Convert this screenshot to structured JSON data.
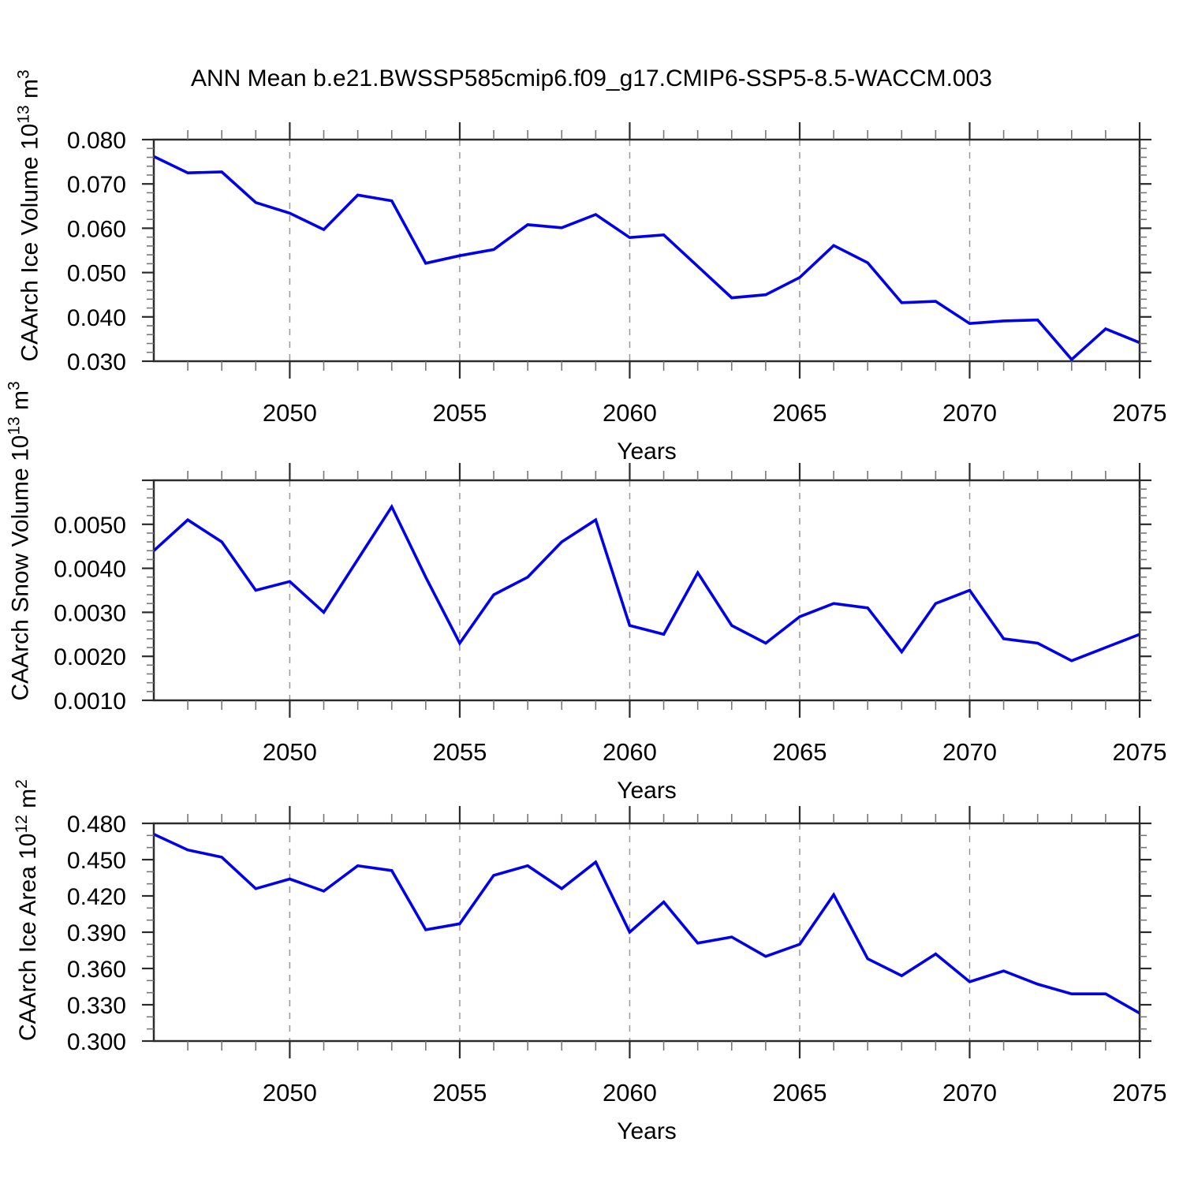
{
  "title": "ANN Mean b.e21.BWSSP585cmip6.f09_g17.CMIP6-SSP5-8.5-WACCM.003",
  "colors": {
    "line": "#0000ee",
    "axis": "#2b2b2b",
    "major_tick": "#2b2b2b",
    "minor_tick": "#777777",
    "gridline": "#999999",
    "text": "#000000",
    "background": "#ffffff"
  },
  "x_axis": {
    "label": "Years",
    "min": 2046,
    "max": 2075,
    "major_ticks": [
      2050,
      2055,
      2060,
      2065,
      2070,
      2075
    ],
    "tick_labels": [
      "2050",
      "2055",
      "2060",
      "2065",
      "2070",
      "2075"
    ],
    "minor_step": 1,
    "gridline_years": [
      2050,
      2055,
      2060,
      2065,
      2070
    ]
  },
  "chart_data": [
    {
      "type": "line",
      "name": "caarch-ice-volume",
      "ylabel": {
        "text": "CAArch Ice Volume 10",
        "exp": "13",
        "unit": " m",
        "unit_exp": "3"
      },
      "xlabel": "Years",
      "ymin": 0.03,
      "ymax": 0.08,
      "ymajor_step": 0.01,
      "yminor_step": 0.002,
      "yticks": [
        {
          "v": 0.03,
          "label": "0.030"
        },
        {
          "v": 0.04,
          "label": "0.040"
        },
        {
          "v": 0.05,
          "label": "0.050"
        },
        {
          "v": 0.06,
          "label": "0.060"
        },
        {
          "v": 0.07,
          "label": "0.070"
        },
        {
          "v": 0.08,
          "label": "0.080"
        }
      ],
      "x": [
        2046,
        2047,
        2048,
        2049,
        2050,
        2051,
        2052,
        2053,
        2054,
        2055,
        2056,
        2057,
        2058,
        2059,
        2060,
        2061,
        2062,
        2063,
        2064,
        2065,
        2066,
        2067,
        2068,
        2069,
        2070,
        2071,
        2072,
        2073,
        2074,
        2075
      ],
      "values": [
        0.0762,
        0.0725,
        0.0727,
        0.0658,
        0.0634,
        0.0597,
        0.0675,
        0.0662,
        0.0521,
        0.0538,
        0.0552,
        0.0608,
        0.0601,
        0.0631,
        0.0579,
        0.0585,
        0.0514,
        0.0443,
        0.045,
        0.0489,
        0.0561,
        0.0522,
        0.0432,
        0.0435,
        0.0385,
        0.0391,
        0.0393,
        0.0304,
        0.0373,
        0.0342
      ]
    },
    {
      "type": "line",
      "name": "caarch-snow-volume",
      "ylabel": {
        "text": "CAArch Snow Volume 10",
        "exp": "13",
        "unit": " m",
        "unit_exp": "3"
      },
      "xlabel": "Years",
      "ymin": 0.001,
      "ymax": 0.006,
      "ymajor_step": 0.001,
      "yminor_step": 0.0002,
      "yticks": [
        {
          "v": 0.001,
          "label": "0.0010"
        },
        {
          "v": 0.002,
          "label": "0.0020"
        },
        {
          "v": 0.003,
          "label": "0.0030"
        },
        {
          "v": 0.004,
          "label": "0.0040"
        },
        {
          "v": 0.005,
          "label": "0.0050"
        },
        {
          "v": 0.006,
          "label": ""
        }
      ],
      "x": [
        2046,
        2047,
        2048,
        2049,
        2050,
        2051,
        2052,
        2053,
        2054,
        2055,
        2056,
        2057,
        2058,
        2059,
        2060,
        2061,
        2062,
        2063,
        2064,
        2065,
        2066,
        2067,
        2068,
        2069,
        2070,
        2071,
        2072,
        2073,
        2074,
        2075
      ],
      "values": [
        0.0044,
        0.0051,
        0.0046,
        0.0035,
        0.0037,
        0.003,
        0.0042,
        0.0054,
        0.0038,
        0.0023,
        0.0034,
        0.0038,
        0.0046,
        0.0051,
        0.0027,
        0.0025,
        0.0039,
        0.0027,
        0.0023,
        0.0029,
        0.0032,
        0.0031,
        0.0021,
        0.0032,
        0.0035,
        0.0024,
        0.0023,
        0.0019,
        0.0022,
        0.0025
      ]
    },
    {
      "type": "line",
      "name": "caarch-ice-area",
      "ylabel": {
        "text": "CAArch Ice Area 10",
        "exp": "12",
        "unit": " m",
        "unit_exp": "2"
      },
      "xlabel": "Years",
      "ymin": 0.3,
      "ymax": 0.48,
      "ymajor_step": 0.03,
      "yminor_step": 0.01,
      "yticks": [
        {
          "v": 0.3,
          "label": "0.300"
        },
        {
          "v": 0.33,
          "label": "0.330"
        },
        {
          "v": 0.36,
          "label": "0.360"
        },
        {
          "v": 0.39,
          "label": "0.390"
        },
        {
          "v": 0.42,
          "label": "0.420"
        },
        {
          "v": 0.45,
          "label": "0.450"
        },
        {
          "v": 0.48,
          "label": "0.480"
        }
      ],
      "x": [
        2046,
        2047,
        2048,
        2049,
        2050,
        2051,
        2052,
        2053,
        2054,
        2055,
        2056,
        2057,
        2058,
        2059,
        2060,
        2061,
        2062,
        2063,
        2064,
        2065,
        2066,
        2067,
        2068,
        2069,
        2070,
        2071,
        2072,
        2073,
        2074,
        2075
      ],
      "values": [
        0.471,
        0.458,
        0.452,
        0.426,
        0.434,
        0.424,
        0.445,
        0.441,
        0.392,
        0.397,
        0.437,
        0.445,
        0.426,
        0.448,
        0.39,
        0.415,
        0.381,
        0.386,
        0.37,
        0.38,
        0.421,
        0.368,
        0.354,
        0.372,
        0.349,
        0.358,
        0.347,
        0.339,
        0.339,
        0.323
      ]
    }
  ]
}
